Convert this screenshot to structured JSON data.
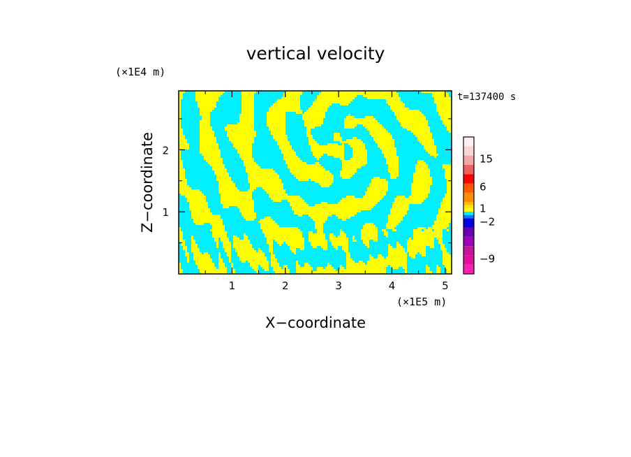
{
  "chart_data": {
    "type": "heatmap",
    "title": "vertical velocity",
    "xlabel": "X−coordinate",
    "ylabel": "Z−coordinate",
    "x_unit": "(×1E5 m)",
    "y_unit": "(×1E4 m)",
    "time_label": "t=137400 s",
    "xlim": [
      0,
      5.12
    ],
    "ylim": [
      0,
      2.95
    ],
    "x_ticks": [
      {
        "value": 1,
        "label": "1"
      },
      {
        "value": 2,
        "label": "2"
      },
      {
        "value": 3,
        "label": "3"
      },
      {
        "value": 4,
        "label": "4"
      },
      {
        "value": 5,
        "label": "5"
      }
    ],
    "y_ticks": [
      {
        "value": 1,
        "label": "1"
      },
      {
        "value": 2,
        "label": "2"
      }
    ],
    "field_colors": {
      "positive": "#ffff00",
      "negative": "#00f0ff"
    },
    "colorbar": {
      "levels": [
        {
          "color": "#ff1fb4"
        },
        {
          "color": "#e0109a"
        },
        {
          "color": "#c4149a"
        },
        {
          "color": "#a000b8"
        },
        {
          "color": "#6a00b4"
        },
        {
          "color": "#0000e6"
        },
        {
          "color": "#007fff"
        },
        {
          "color": "#00f0ff"
        },
        {
          "color": "#ffff00"
        },
        {
          "color": "#ffe600"
        },
        {
          "color": "#ffc000"
        },
        {
          "color": "#ff8c00"
        },
        {
          "color": "#ff5a00"
        },
        {
          "color": "#ff0000"
        },
        {
          "color": "#f06060"
        },
        {
          "color": "#f5a6a6"
        },
        {
          "color": "#fad6d0"
        },
        {
          "color": "#fff0ee"
        }
      ],
      "labels": [
        {
          "value": -9,
          "text": "−9"
        },
        {
          "value": -2,
          "text": "−2"
        },
        {
          "value": 1,
          "text": "1"
        },
        {
          "value": 6,
          "text": "6"
        },
        {
          "value": 15,
          "text": "15"
        }
      ]
    }
  }
}
